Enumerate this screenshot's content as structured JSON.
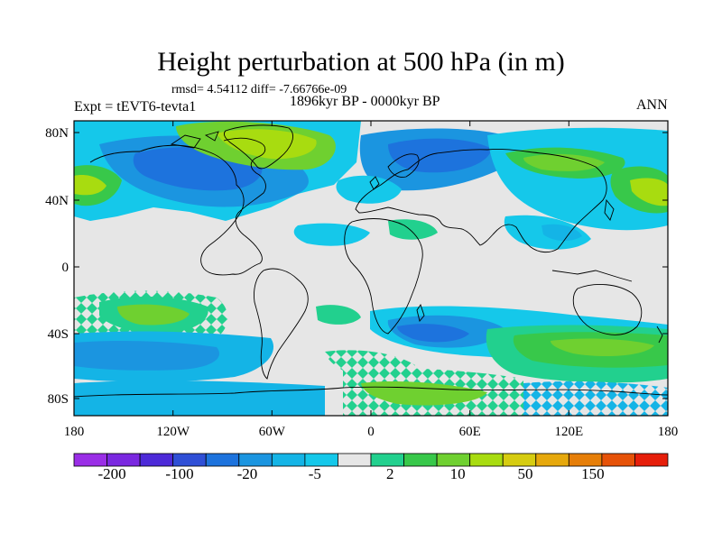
{
  "title": "Height perturbation at 500 hPa (in m)",
  "stats": "rmsd= 4.54112 diff= -7.66766e-09",
  "experiment": "Expt = tEVT6-tevta1",
  "period": "1896kyr BP - 0000kyr BP",
  "season": "ANN",
  "lat_labels": [
    "80N",
    "40N",
    "0",
    "40S",
    "80S"
  ],
  "lon_labels": [
    "180",
    "120W",
    "60W",
    "0",
    "60E",
    "120E",
    "180"
  ],
  "colorbar_labels": [
    "-200",
    "-100",
    "-20",
    "-5",
    "2",
    "10",
    "50",
    "150"
  ],
  "colorbar_colors": [
    "#9a2ee6",
    "#7a28e0",
    "#4d2ad8",
    "#2f4fd6",
    "#1d73dd",
    "#1b95e0",
    "#14b4e6",
    "#15c8ea",
    "#e6e6e6",
    "#22d08e",
    "#38c84a",
    "#6fd030",
    "#a8dc10",
    "#d6cc10",
    "#e6a80c",
    "#e67e08",
    "#e65208",
    "#e61e0a"
  ],
  "colors": {
    "background": "#e6e6e6",
    "coastline": "#000000"
  }
}
